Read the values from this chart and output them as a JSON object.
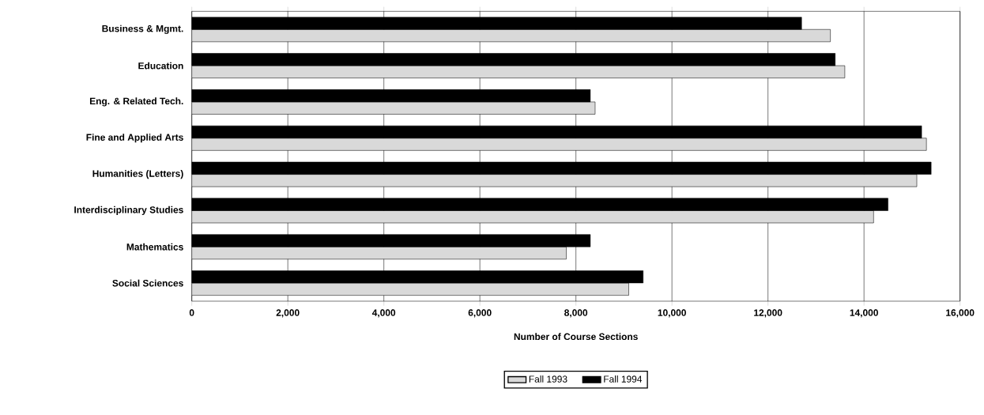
{
  "chart_data": {
    "type": "bar",
    "orientation": "horizontal",
    "xlabel": "Number of Course Sections",
    "categories": [
      "Business & Mgmt.",
      "Education",
      "Eng. & Related Tech.",
      "Fine and Applied Arts",
      "Humanities (Letters)",
      "Interdisciplinary Studies",
      "Mathematics",
      "Social Sciences"
    ],
    "series": [
      {
        "name": "Fall 1993",
        "color": "#d9d9d9",
        "values": [
          13300,
          13600,
          8400,
          15300,
          15100,
          14200,
          7800,
          9100
        ]
      },
      {
        "name": "Fall 1994",
        "color": "#000000",
        "values": [
          12700,
          13400,
          8300,
          15200,
          15400,
          14500,
          8300,
          9400
        ]
      }
    ],
    "xlim": [
      0,
      16000
    ],
    "xticks": [
      {
        "value": 0,
        "label": "0"
      },
      {
        "value": 2000,
        "label": "2,000"
      },
      {
        "value": 4000,
        "label": "4,000"
      },
      {
        "value": 6000,
        "label": "6,000"
      },
      {
        "value": 8000,
        "label": "8,000"
      },
      {
        "value": 10000,
        "label": "10,000"
      },
      {
        "value": 12000,
        "label": "12,000"
      },
      {
        "value": 14000,
        "label": "14,000"
      },
      {
        "value": 16000,
        "label": "16,000"
      }
    ],
    "grid": "x",
    "legend": "bottom"
  }
}
